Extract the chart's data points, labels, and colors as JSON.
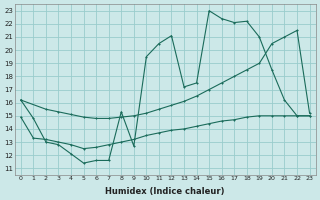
{
  "xlabel": "Humidex (Indice chaleur)",
  "bg_color": "#cce8e8",
  "grid_color": "#99cccc",
  "line_color": "#1a6b5a",
  "xlim": [
    -0.5,
    23.5
  ],
  "ylim": [
    10.5,
    23.5
  ],
  "xticks": [
    0,
    1,
    2,
    3,
    4,
    5,
    6,
    7,
    8,
    9,
    10,
    11,
    12,
    13,
    14,
    15,
    16,
    17,
    18,
    19,
    20,
    21,
    22,
    23
  ],
  "yticks": [
    11,
    12,
    13,
    14,
    15,
    16,
    17,
    18,
    19,
    20,
    21,
    22,
    23
  ],
  "line1_x": [
    0,
    1,
    2,
    3,
    4,
    5,
    6,
    7,
    8,
    9,
    10,
    11,
    12,
    13,
    14,
    15,
    16,
    17,
    18,
    19,
    20,
    21,
    22,
    23
  ],
  "line1_y": [
    16.2,
    14.8,
    13.0,
    12.8,
    12.1,
    11.4,
    11.6,
    11.6,
    15.3,
    12.7,
    19.5,
    20.5,
    21.1,
    17.2,
    17.5,
    23.0,
    22.4,
    22.1,
    22.2,
    21.0,
    18.5,
    16.2,
    15.0,
    15.0
  ],
  "line2_x": [
    0,
    2,
    3,
    4,
    5,
    6,
    7,
    8,
    9,
    10,
    11,
    12,
    13,
    14,
    15,
    16,
    17,
    18,
    19,
    20,
    21,
    22,
    23
  ],
  "line2_y": [
    16.2,
    15.5,
    15.3,
    15.1,
    14.9,
    14.8,
    14.8,
    14.9,
    15.0,
    15.2,
    15.5,
    15.8,
    16.1,
    16.5,
    17.0,
    17.5,
    18.0,
    18.5,
    19.0,
    20.5,
    21.0,
    21.5,
    15.2
  ],
  "line3_x": [
    0,
    1,
    2,
    3,
    4,
    5,
    6,
    7,
    8,
    9,
    10,
    11,
    12,
    13,
    14,
    15,
    16,
    17,
    18,
    19,
    20,
    21,
    22,
    23
  ],
  "line3_y": [
    14.9,
    13.3,
    13.2,
    13.0,
    12.8,
    12.5,
    12.6,
    12.8,
    13.0,
    13.2,
    13.5,
    13.7,
    13.9,
    14.0,
    14.2,
    14.4,
    14.6,
    14.7,
    14.9,
    15.0,
    15.0,
    15.0,
    15.0,
    15.0
  ]
}
